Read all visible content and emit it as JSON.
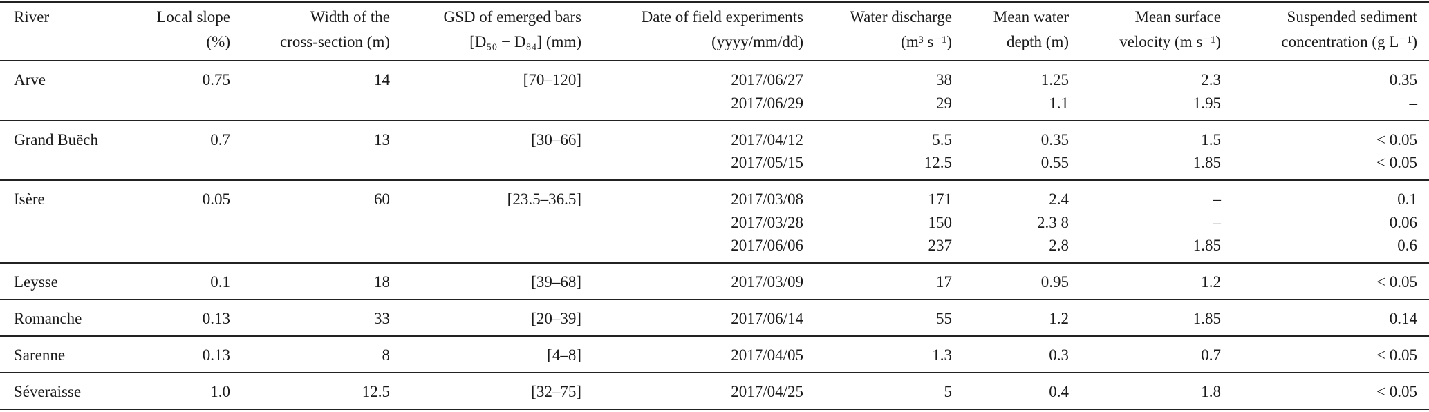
{
  "table": {
    "columns": [
      [
        "River"
      ],
      [
        "Local slope",
        "(%)"
      ],
      [
        "Width of the",
        "cross-section (m)"
      ],
      [
        "GSD of emerged bars",
        "[D₅₀ − D₈₄] (mm)"
      ],
      [
        "Date of field experiments",
        "(yyyy/mm/dd)"
      ],
      [
        "Water discharge",
        "(m³ s⁻¹)"
      ],
      [
        "Mean water",
        "depth (m)"
      ],
      [
        "Mean surface",
        "velocity (m s⁻¹)"
      ],
      [
        "Suspended sediment",
        "concentration (g L⁻¹)"
      ]
    ],
    "rows": [
      {
        "cells": [
          "Arve",
          "0.75",
          "14",
          "[70–120]"
        ],
        "experiments": [
          [
            "2017/06/27",
            "38",
            "1.25",
            "2.3",
            "0.35"
          ],
          [
            "2017/06/29",
            "29",
            "1.1",
            "1.95",
            "–"
          ]
        ]
      },
      {
        "cells": [
          "Grand Buëch",
          "0.7",
          "13",
          "[30–66]"
        ],
        "experiments": [
          [
            "2017/04/12",
            "5.5",
            "0.35",
            "1.5",
            "< 0.05"
          ],
          [
            "2017/05/15",
            "12.5",
            "0.55",
            "1.85",
            "< 0.05"
          ]
        ]
      },
      {
        "cells": [
          "Isère",
          "0.05",
          "60",
          "[23.5–36.5]"
        ],
        "experiments": [
          [
            "2017/03/08",
            "171",
            "2.4",
            "–",
            "0.1"
          ],
          [
            "2017/03/28",
            "150",
            "2.3 8",
            "–",
            "0.06"
          ],
          [
            "2017/06/06",
            "237",
            "2.8",
            "1.85",
            "0.6"
          ]
        ]
      },
      {
        "cells": [
          "Leysse",
          "0.1",
          "18",
          "[39–68]"
        ],
        "experiments": [
          [
            "2017/03/09",
            "17",
            "0.95",
            "1.2",
            "< 0.05"
          ]
        ]
      },
      {
        "cells": [
          "Romanche",
          "0.13",
          "33",
          "[20–39]"
        ],
        "experiments": [
          [
            "2017/06/14",
            "55",
            "1.2",
            "1.85",
            "0.14"
          ]
        ]
      },
      {
        "cells": [
          "Sarenne",
          "0.13",
          "8",
          "[4–8]"
        ],
        "experiments": [
          [
            "2017/04/05",
            "1.3",
            "0.3",
            "0.7",
            "< 0.05"
          ]
        ]
      },
      {
        "cells": [
          "Séveraisse",
          "1.0",
          "12.5",
          "[32–75]"
        ],
        "experiments": [
          [
            "2017/04/25",
            "5",
            "0.4",
            "1.8",
            "< 0.05"
          ]
        ]
      }
    ]
  }
}
